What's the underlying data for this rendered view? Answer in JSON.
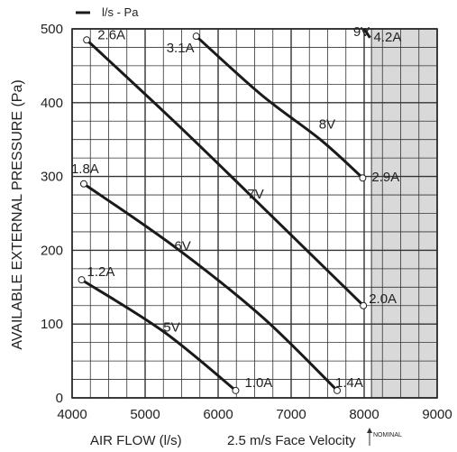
{
  "chart_data": {
    "type": "line",
    "legend": {
      "label": "l/s - Pa",
      "position": "top-left"
    },
    "xlabel": "AIR FLOW (l/s)",
    "xlabel_note": "2.5 m/s Face Velocity",
    "nominal_label": "NOMINAL",
    "nominal_x": 8100,
    "ylabel": "AVAILABLE EXTERNAL PRESSURE (Pa)",
    "xlim": [
      4000,
      9000
    ],
    "ylim": [
      0,
      500
    ],
    "x_ticks": [
      "4000",
      "5000",
      "6000",
      "7000",
      "8000",
      "9000"
    ],
    "y_ticks": [
      "0",
      "100",
      "200",
      "300",
      "400",
      "500"
    ],
    "grid": true,
    "shaded_region": {
      "x": [
        8100,
        9000
      ],
      "color": "#d9d9d9"
    },
    "series": [
      {
        "name": "5V",
        "x": [
          4130,
          5250,
          6240
        ],
        "y": [
          160,
          90,
          10
        ],
        "start_current": "1.2A",
        "end_current": "1.0A"
      },
      {
        "name": "6V",
        "x": [
          4160,
          5400,
          6600,
          7630
        ],
        "y": [
          290,
          205,
          110,
          10
        ],
        "start_current": "1.8A",
        "end_current": "1.4A"
      },
      {
        "name": "7V",
        "x": [
          4200,
          5500,
          6800,
          7990
        ],
        "y": [
          485,
          365,
          240,
          125
        ],
        "start_current": "2.6A",
        "end_current": "2.0A"
      },
      {
        "name": "8V",
        "x": [
          5700,
          6600,
          7400,
          7980
        ],
        "y": [
          490,
          410,
          350,
          298
        ],
        "start_current": "3.1A",
        "end_current": "2.9A"
      },
      {
        "name": "9V",
        "x": [
          8000,
          8080
        ],
        "y": [
          500,
          488
        ],
        "start_current": "",
        "end_current": "4.2A"
      }
    ]
  },
  "colors": {
    "line": "#1a1a1a",
    "grid": "#333333",
    "shade": "#d9d9d9"
  }
}
